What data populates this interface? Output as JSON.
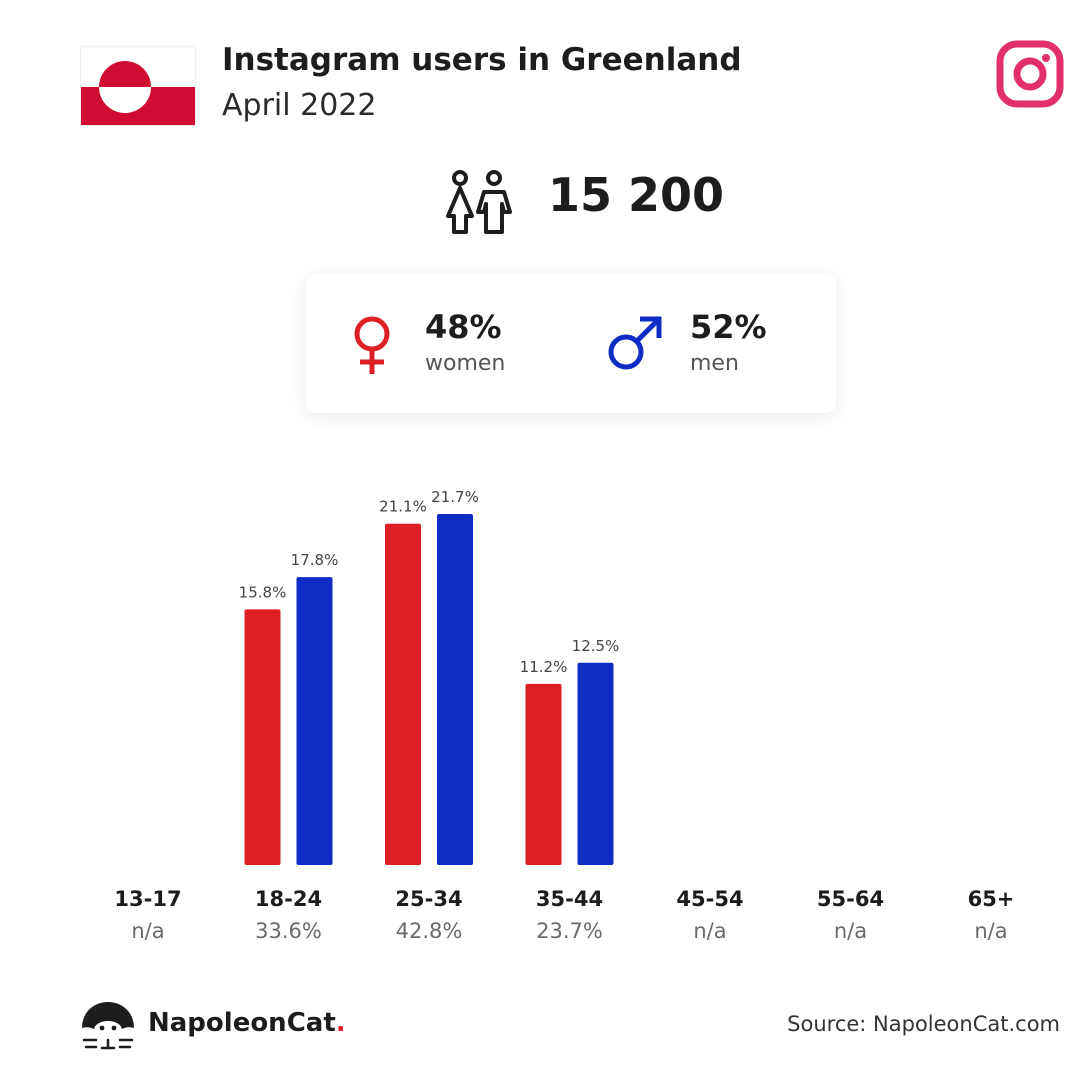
{
  "header": {
    "title": "Instagram users in Greenland",
    "subtitle": "April 2022"
  },
  "total_users": "15 200",
  "gender": {
    "women": {
      "pct": "48%",
      "label": "women"
    },
    "men": {
      "pct": "52%",
      "label": "men"
    }
  },
  "colors": {
    "women": "#dd1f26",
    "men": "#0f2cc4",
    "instagram": "#e1306c",
    "flag_red": "#d00c33"
  },
  "icons": [
    "greenland-flag-icon",
    "instagram-icon",
    "people-icon",
    "female-icon",
    "male-icon",
    "napoleoncat-logo-icon"
  ],
  "chart_data": {
    "type": "bar",
    "categories": [
      "13-17",
      "18-24",
      "25-34",
      "35-44",
      "45-54",
      "55-64",
      "65+"
    ],
    "category_totals": [
      "n/a",
      "33.6%",
      "42.8%",
      "23.7%",
      "n/a",
      "n/a",
      "n/a"
    ],
    "series": [
      {
        "key": "women",
        "values": [
          null,
          15.8,
          21.1,
          11.2,
          null,
          null,
          null
        ],
        "labels": [
          "",
          "15.8%",
          "21.1%",
          "11.2%",
          "",
          "",
          ""
        ]
      },
      {
        "key": "men",
        "values": [
          null,
          17.8,
          21.7,
          12.5,
          null,
          null,
          null
        ],
        "labels": [
          "",
          "17.8%",
          "21.7%",
          "12.5%",
          "",
          "",
          ""
        ]
      }
    ],
    "ylim": [
      0,
      21.7
    ],
    "grid": false
  },
  "footer": {
    "brand_name": "NapoleonCat",
    "brand_dot": ".",
    "source": "Source: NapoleonCat.com"
  }
}
